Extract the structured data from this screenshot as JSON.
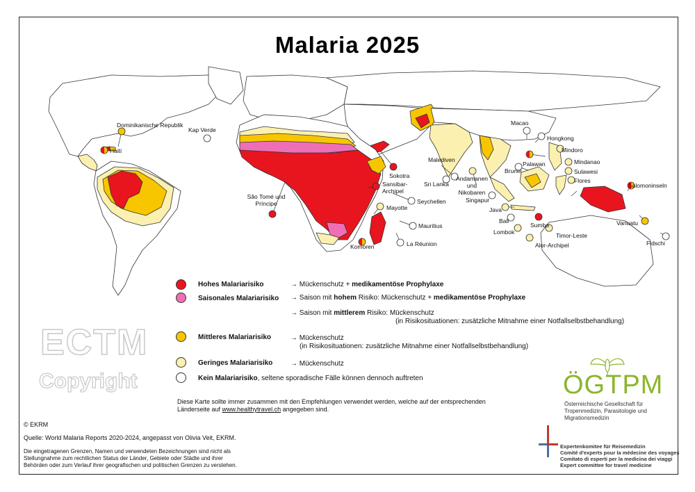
{
  "title": "Malaria 2025",
  "colors": {
    "high": "#e8151f",
    "seasonal": "#ef6fb6",
    "medium": "#f7c600",
    "low": "#fbf0b0",
    "none": "#ffffff",
    "border": "#333333",
    "ogtpm_green": "#8cb52c"
  },
  "place_labels": {
    "dominikanische_republik": "Dominikanische Republik",
    "haiti": "Haiti",
    "kap_verde": "Kap Verde",
    "sao_tome": "São Tomé und Príncipe",
    "sokotra": "Sokotra",
    "sansibar": "Sansibar-Archipel",
    "seychellen": "Seychellen",
    "mayotte": "Mayotte",
    "mauritius": "Mauritius",
    "la_reunion": "La Réunion",
    "komoren": "Komoren",
    "malediven": "Malediven",
    "sri_lanka": "Sri Lanka",
    "andamanen": "Andamanen und Nikobaren",
    "singapur": "Singapur",
    "macao": "Macao",
    "hongkong": "Hongkong",
    "brunei": "Brunei",
    "palawan": "Palawan",
    "mindoro": "Mindoro",
    "mindanao": "Mindanao",
    "sulawesi": "Sulawesi",
    "flores": "Flores",
    "java": "Java",
    "bali": "Bali",
    "lombok": "Lombok",
    "sumba": "Sumba",
    "timor_leste": "Timor-Leste",
    "alor": "Alor-Archipel",
    "salomoninseln": "Salomoninseln",
    "vanuatu": "Vanuatu",
    "fidschi": "Fidschi"
  },
  "legend": {
    "high_label": "Hohes Malariarisiko",
    "high_advice_pre": "→ Mückenschutz + ",
    "high_advice_bold": "medikamentöse Prophylaxe",
    "seasonal_label": "Saisonales Malariarisiko",
    "seasonal_advice1_pre": "→ Saison mit ",
    "seasonal_advice1_bold": "hohem",
    "seasonal_advice1_mid": " Risiko: Mückenschutz + ",
    "seasonal_advice1_bold2": "medikamentöse Prophylaxe",
    "seasonal_advice2_pre": "→ Saison mit ",
    "seasonal_advice2_bold": "mittlerem",
    "seasonal_advice2_post": " Risiko: Mückenschutz",
    "seasonal_advice2_line2": "(in Risikosituationen: zusätzliche Mitnahme einer Notfallselbstbehandlung)",
    "medium_label": "Mittleres Malariarisiko",
    "medium_advice": "→ Mückenschutz",
    "medium_advice_line2": "(in Risikosituationen: zusätzliche Mitnahme einer Notfallselbstbehandlung)",
    "low_label": "Geringes Malariarisiko",
    "low_advice": "→ Mückenschutz",
    "none_label_bold": "Kein Malariarisiko",
    "none_label_rest": ", seltene sporadische Fälle können dennoch auftreten"
  },
  "note": {
    "line1": "Diese Karte sollte immer zusammen mit den Empfehlungen verwendet werden, welche auf der entsprechenden",
    "line2_pre": "Länderseite auf ",
    "line2_link": "www.healthytravel.ch",
    "line2_post": " angegeben sind."
  },
  "watermark": {
    "line1": "ECTM",
    "line2": "Copyright"
  },
  "footer": {
    "copyright": "© EKRM",
    "source": "Quelle: World Malaria Reports 2020-2024, angepasst von Olivia Veit, EKRM.",
    "disclaimer1": "Die eingetragenen Grenzen, Namen und verwendeten Bezeichnungen sind nicht als",
    "disclaimer2": "Stellungnahme zum rechtlichen Status der Länder, Gebiete oder Städte und ihrer",
    "disclaimer3": "Behörden oder zum Verlauf ihrer geografischen und politischen Grenzen zu verstehen."
  },
  "logos": {
    "ogtpm_name": "ÖGTPM",
    "ogtpm_sub1": "Österreichische Gesellschaft für",
    "ogtpm_sub2": "Tropenmedizin, Parasitologie und",
    "ogtpm_sub3": "Migrationsmedizin",
    "ekrm1": "Expertenkomitee für Reisemedizin",
    "ekrm2": "Comité d'experts pour la médecine des voyages",
    "ekrm3": "Comitato di esperti per la medicina dei viaggi",
    "ekrm4": "Expert committee for travel medicine"
  }
}
